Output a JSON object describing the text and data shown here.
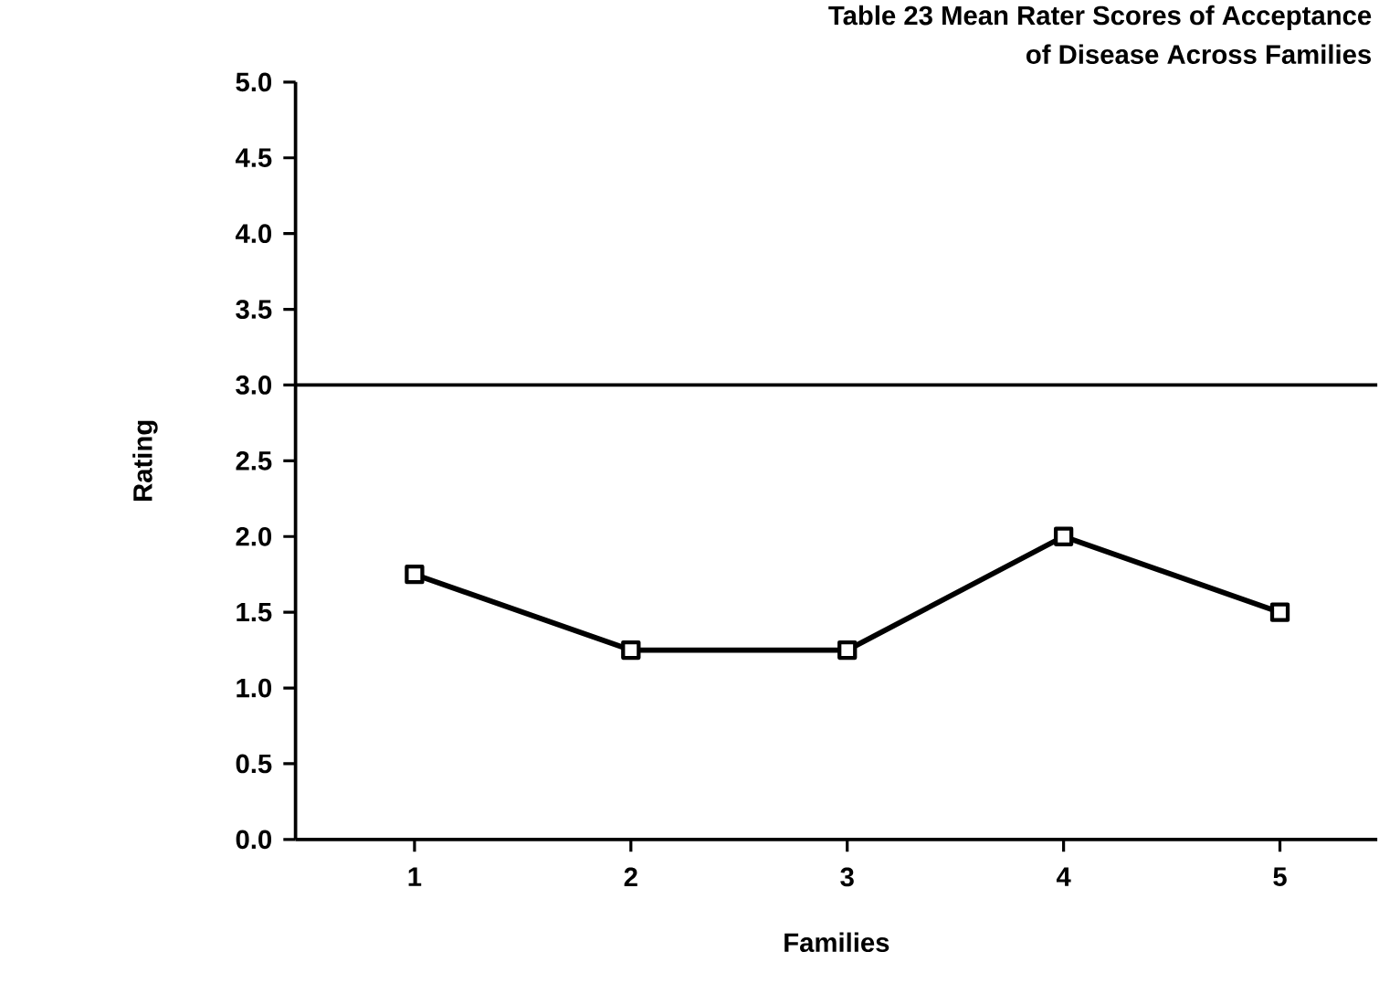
{
  "chart_data": {
    "type": "line",
    "title": "Table 23 Mean Rater Scores of Acceptance\nof Disease Across Families",
    "x": [
      1,
      2,
      3,
      4,
      5
    ],
    "series": [
      {
        "color": "#000000",
        "values": [
          1.75,
          1.25,
          1.25,
          2.0,
          1.5
        ]
      }
    ],
    "xlabel": "Families",
    "ylabel": "Rating",
    "xlim": [
      0.45,
      5.45
    ],
    "xticks": [
      1,
      2,
      3,
      4,
      5
    ],
    "ylim": [
      0,
      5
    ],
    "yticks": [
      {
        "value": 0,
        "label": "0.0"
      },
      {
        "value": 0.5,
        "label": "0.5"
      },
      {
        "value": 1,
        "label": "1.0"
      },
      {
        "value": 1.5,
        "label": "1.5"
      },
      {
        "value": 2,
        "label": "2.0"
      },
      {
        "value": 2.5,
        "label": "2.5"
      },
      {
        "value": 3,
        "label": "3.0"
      },
      {
        "value": 3.5,
        "label": "3.5"
      },
      {
        "value": 4,
        "label": "4.0"
      },
      {
        "value": 4.5,
        "label": "4.5"
      },
      {
        "value": 5,
        "label": "5.0"
      }
    ],
    "ref_lines": [
      {
        "axis": "y",
        "value": 3
      }
    ],
    "marker": "square",
    "line_style": "solid",
    "grid": false
  }
}
